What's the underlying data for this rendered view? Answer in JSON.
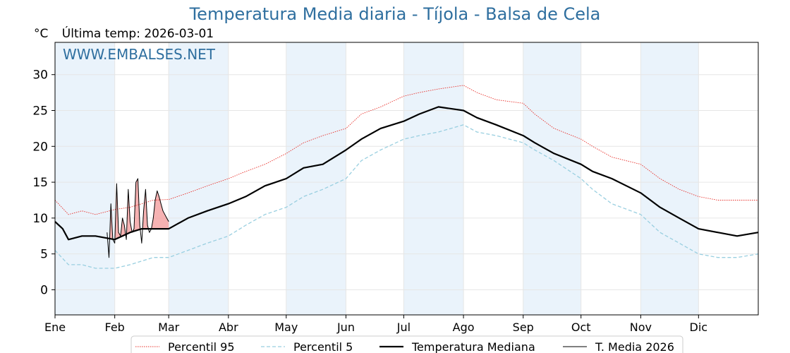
{
  "page": {
    "title": "Temperatura Media diaria - Tíjola - Balsa de Cela",
    "unit": "°C",
    "last_temp": "Última temp: 2026-03-01",
    "watermark": "WWW.EMBALSES.NET"
  },
  "chart_data": {
    "type": "line",
    "title": "Temperatura Media diaria - Tíjola - Balsa de Cela",
    "ylabel": "°C",
    "xlabel": "",
    "ylim": [
      -3.5,
      34.5
    ],
    "xlim": [
      1,
      366
    ],
    "y_ticks": [
      0,
      5,
      10,
      15,
      20,
      25,
      30
    ],
    "x_ticks": [
      {
        "label": "Ene",
        "day": 1
      },
      {
        "label": "Feb",
        "day": 32
      },
      {
        "label": "Mar",
        "day": 60
      },
      {
        "label": "Abr",
        "day": 91
      },
      {
        "label": "May",
        "day": 121
      },
      {
        "label": "Jun",
        "day": 152
      },
      {
        "label": "Jul",
        "day": 182
      },
      {
        "label": "Ago",
        "day": 213
      },
      {
        "label": "Sep",
        "day": 244
      },
      {
        "label": "Oct",
        "day": 274
      },
      {
        "label": "Nov",
        "day": 305
      },
      {
        "label": "Dic",
        "day": 335
      }
    ],
    "shaded_months": [
      [
        1,
        32
      ],
      [
        60,
        91
      ],
      [
        121,
        152
      ],
      [
        182,
        213
      ],
      [
        244,
        274
      ],
      [
        305,
        335
      ]
    ],
    "grid": true,
    "legend": {
      "placement": "bottom",
      "entries": [
        "Percentil 95",
        "Percentil 5",
        "Temperatura Mediana",
        "T. Media 2026"
      ]
    },
    "colors": {
      "p95": "#e8302a",
      "p5": "#99cfe0",
      "median": "#000000",
      "current": "#000000",
      "fill_above": "#f4a4a4",
      "band": "#eaf3fb",
      "title": "#2f6f9f"
    },
    "series": [
      {
        "name": "Percentil 95",
        "style": "dotted",
        "x": [
          1,
          8,
          15,
          22,
          32,
          40,
          46,
          52,
          60,
          70,
          80,
          91,
          100,
          110,
          121,
          130,
          140,
          152,
          160,
          170,
          182,
          190,
          200,
          213,
          220,
          230,
          244,
          250,
          260,
          274,
          280,
          290,
          305,
          315,
          325,
          335,
          345,
          355,
          366
        ],
        "values": [
          12.5,
          10.5,
          11.0,
          10.5,
          11.2,
          11.5,
          12.0,
          12.5,
          12.6,
          13.5,
          14.5,
          15.5,
          16.5,
          17.5,
          19.0,
          20.5,
          21.5,
          22.5,
          24.5,
          25.5,
          27.0,
          27.5,
          28.0,
          28.5,
          27.5,
          26.5,
          26.0,
          24.5,
          22.5,
          21.0,
          20.0,
          18.5,
          17.5,
          15.5,
          14.0,
          13.0,
          12.5,
          12.5,
          12.5
        ]
      },
      {
        "name": "Percentil 5",
        "style": "dashed",
        "x": [
          1,
          8,
          15,
          22,
          32,
          40,
          46,
          52,
          60,
          70,
          80,
          91,
          100,
          110,
          121,
          130,
          140,
          152,
          160,
          170,
          182,
          190,
          200,
          213,
          220,
          230,
          244,
          250,
          260,
          274,
          280,
          290,
          305,
          315,
          325,
          335,
          345,
          355,
          366
        ],
        "values": [
          5.5,
          3.5,
          3.5,
          3.0,
          3.0,
          3.5,
          4.0,
          4.5,
          4.5,
          5.5,
          6.5,
          7.5,
          9.0,
          10.5,
          11.5,
          13.0,
          14.0,
          15.5,
          18.0,
          19.5,
          21.0,
          21.5,
          22.0,
          23.0,
          22.0,
          21.5,
          20.5,
          19.5,
          18.0,
          15.5,
          14.0,
          12.0,
          10.5,
          8.0,
          6.5,
          5.0,
          4.5,
          4.5,
          5.0
        ]
      },
      {
        "name": "Temperatura Mediana",
        "style": "solid",
        "x": [
          1,
          5,
          8,
          15,
          22,
          32,
          40,
          46,
          52,
          60,
          70,
          80,
          91,
          100,
          110,
          121,
          130,
          140,
          152,
          160,
          170,
          182,
          190,
          200,
          213,
          220,
          230,
          244,
          250,
          260,
          274,
          280,
          290,
          305,
          315,
          325,
          335,
          345,
          355,
          366
        ],
        "values": [
          9.5,
          8.5,
          7.0,
          7.5,
          7.5,
          7.0,
          8.0,
          8.5,
          8.5,
          8.5,
          10.0,
          11.0,
          12.0,
          13.0,
          14.5,
          15.5,
          17.0,
          17.5,
          19.5,
          21.0,
          22.5,
          23.5,
          24.5,
          25.5,
          25.0,
          24.0,
          23.0,
          21.5,
          20.5,
          19.0,
          17.5,
          16.5,
          15.5,
          13.5,
          11.5,
          10.0,
          8.5,
          8.0,
          7.5,
          8.0
        ]
      },
      {
        "name": "T. Media 2026",
        "style": "thin",
        "x": [
          28,
          29,
          30,
          31,
          32,
          33,
          34,
          35,
          36,
          37,
          38,
          39,
          40,
          41,
          42,
          43,
          44,
          45,
          46,
          47,
          48,
          49,
          50,
          51,
          52,
          53,
          54,
          55,
          56,
          57,
          58,
          59,
          60
        ],
        "values": [
          8.0,
          4.5,
          12.0,
          7.0,
          6.5,
          14.8,
          8.0,
          7.5,
          10.0,
          9.0,
          7.0,
          14.0,
          9.5,
          8.0,
          8.5,
          15.0,
          15.5,
          9.0,
          6.5,
          11.0,
          14.0,
          9.0,
          8.0,
          8.5,
          10.0,
          12.5,
          13.8,
          13.0,
          12.0,
          11.0,
          10.5,
          10.0,
          9.5
        ]
      }
    ]
  }
}
